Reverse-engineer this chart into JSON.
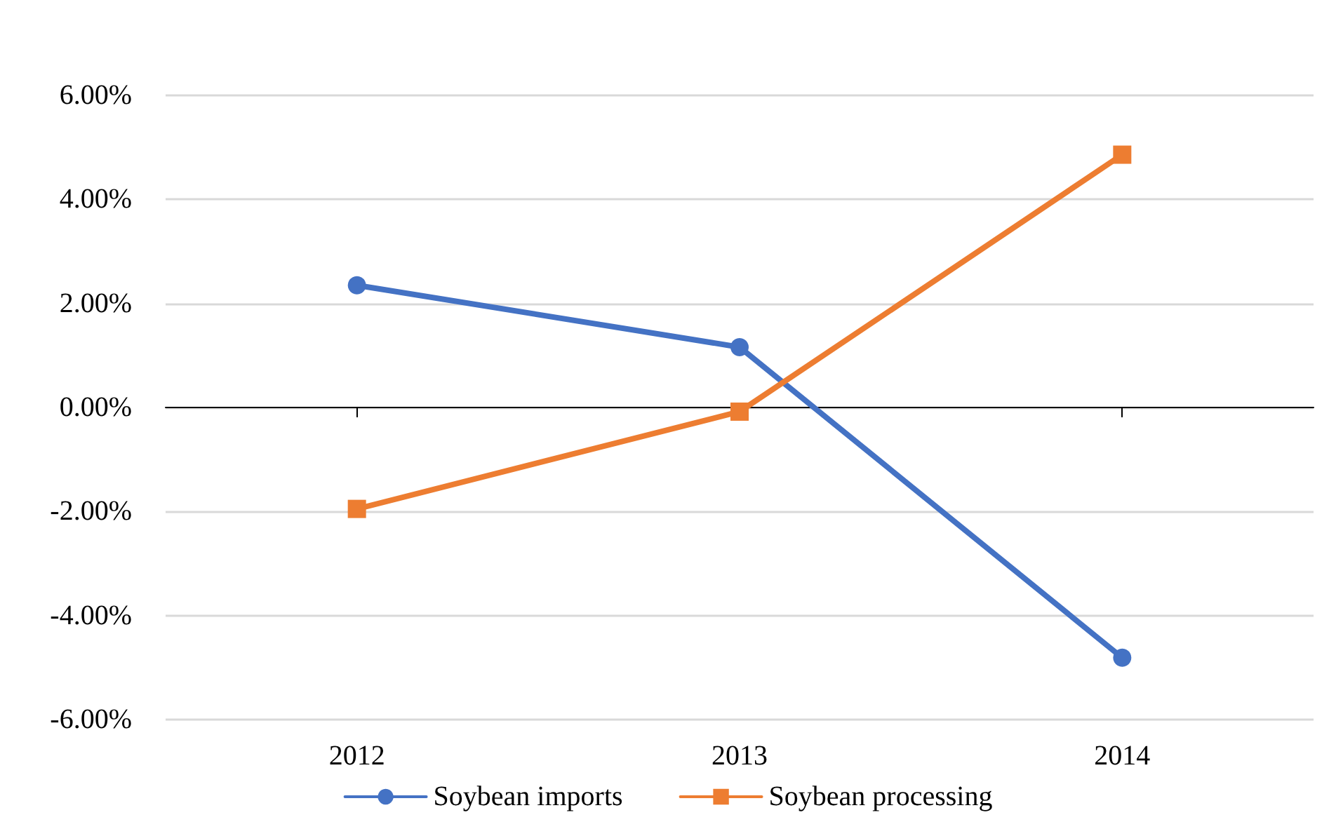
{
  "chart_data": {
    "type": "line",
    "categories": [
      "2012",
      "2013",
      "2014"
    ],
    "series": [
      {
        "name": "Soybean imports",
        "color": "#4472c4",
        "values": [
          2.35,
          1.16,
          -4.81
        ],
        "marker": "circle"
      },
      {
        "name": "Soybean processing",
        "color": "#ed7d31",
        "values": [
          -1.95,
          -0.08,
          4.86
        ],
        "marker": "square"
      }
    ],
    "ylim": [
      -6,
      6
    ],
    "yticks": [
      {
        "value": -6,
        "label": "-6.00%"
      },
      {
        "value": -4,
        "label": "-4.00%"
      },
      {
        "value": -2,
        "label": "-2.00%"
      },
      {
        "value": 0,
        "label": "0.00%"
      },
      {
        "value": 2,
        "label": "2.00%"
      },
      {
        "value": 4,
        "label": "4.00%"
      },
      {
        "value": 6,
        "label": "6.00%"
      }
    ],
    "grid": "y",
    "legend": "bottom",
    "line_style": "solid"
  }
}
